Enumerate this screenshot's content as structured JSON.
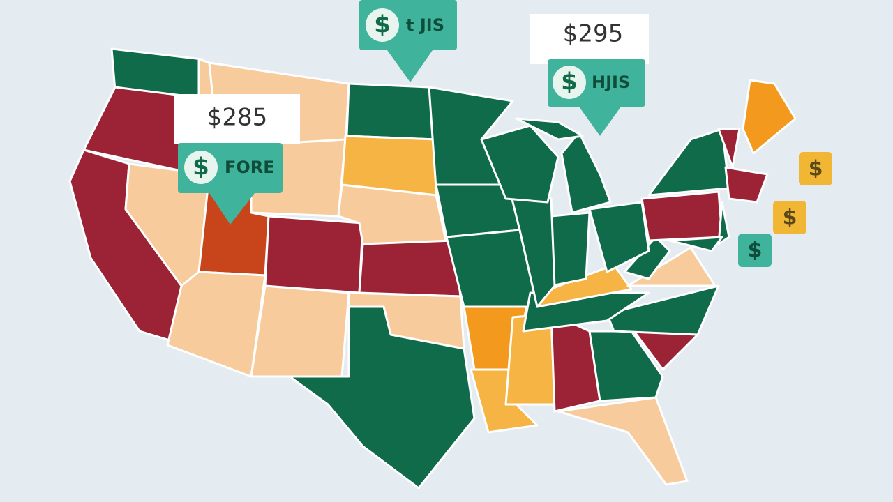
{
  "callouts": [
    {
      "price": "$285",
      "icon": "$",
      "label": "FORE"
    },
    {
      "icon": "$",
      "label": "t JIS"
    },
    {
      "price": "$295",
      "icon": "$",
      "label": "HJIS"
    }
  ],
  "tiles": [
    {
      "icon": "$"
    },
    {
      "icon": "$"
    },
    {
      "icon": "$"
    }
  ]
}
